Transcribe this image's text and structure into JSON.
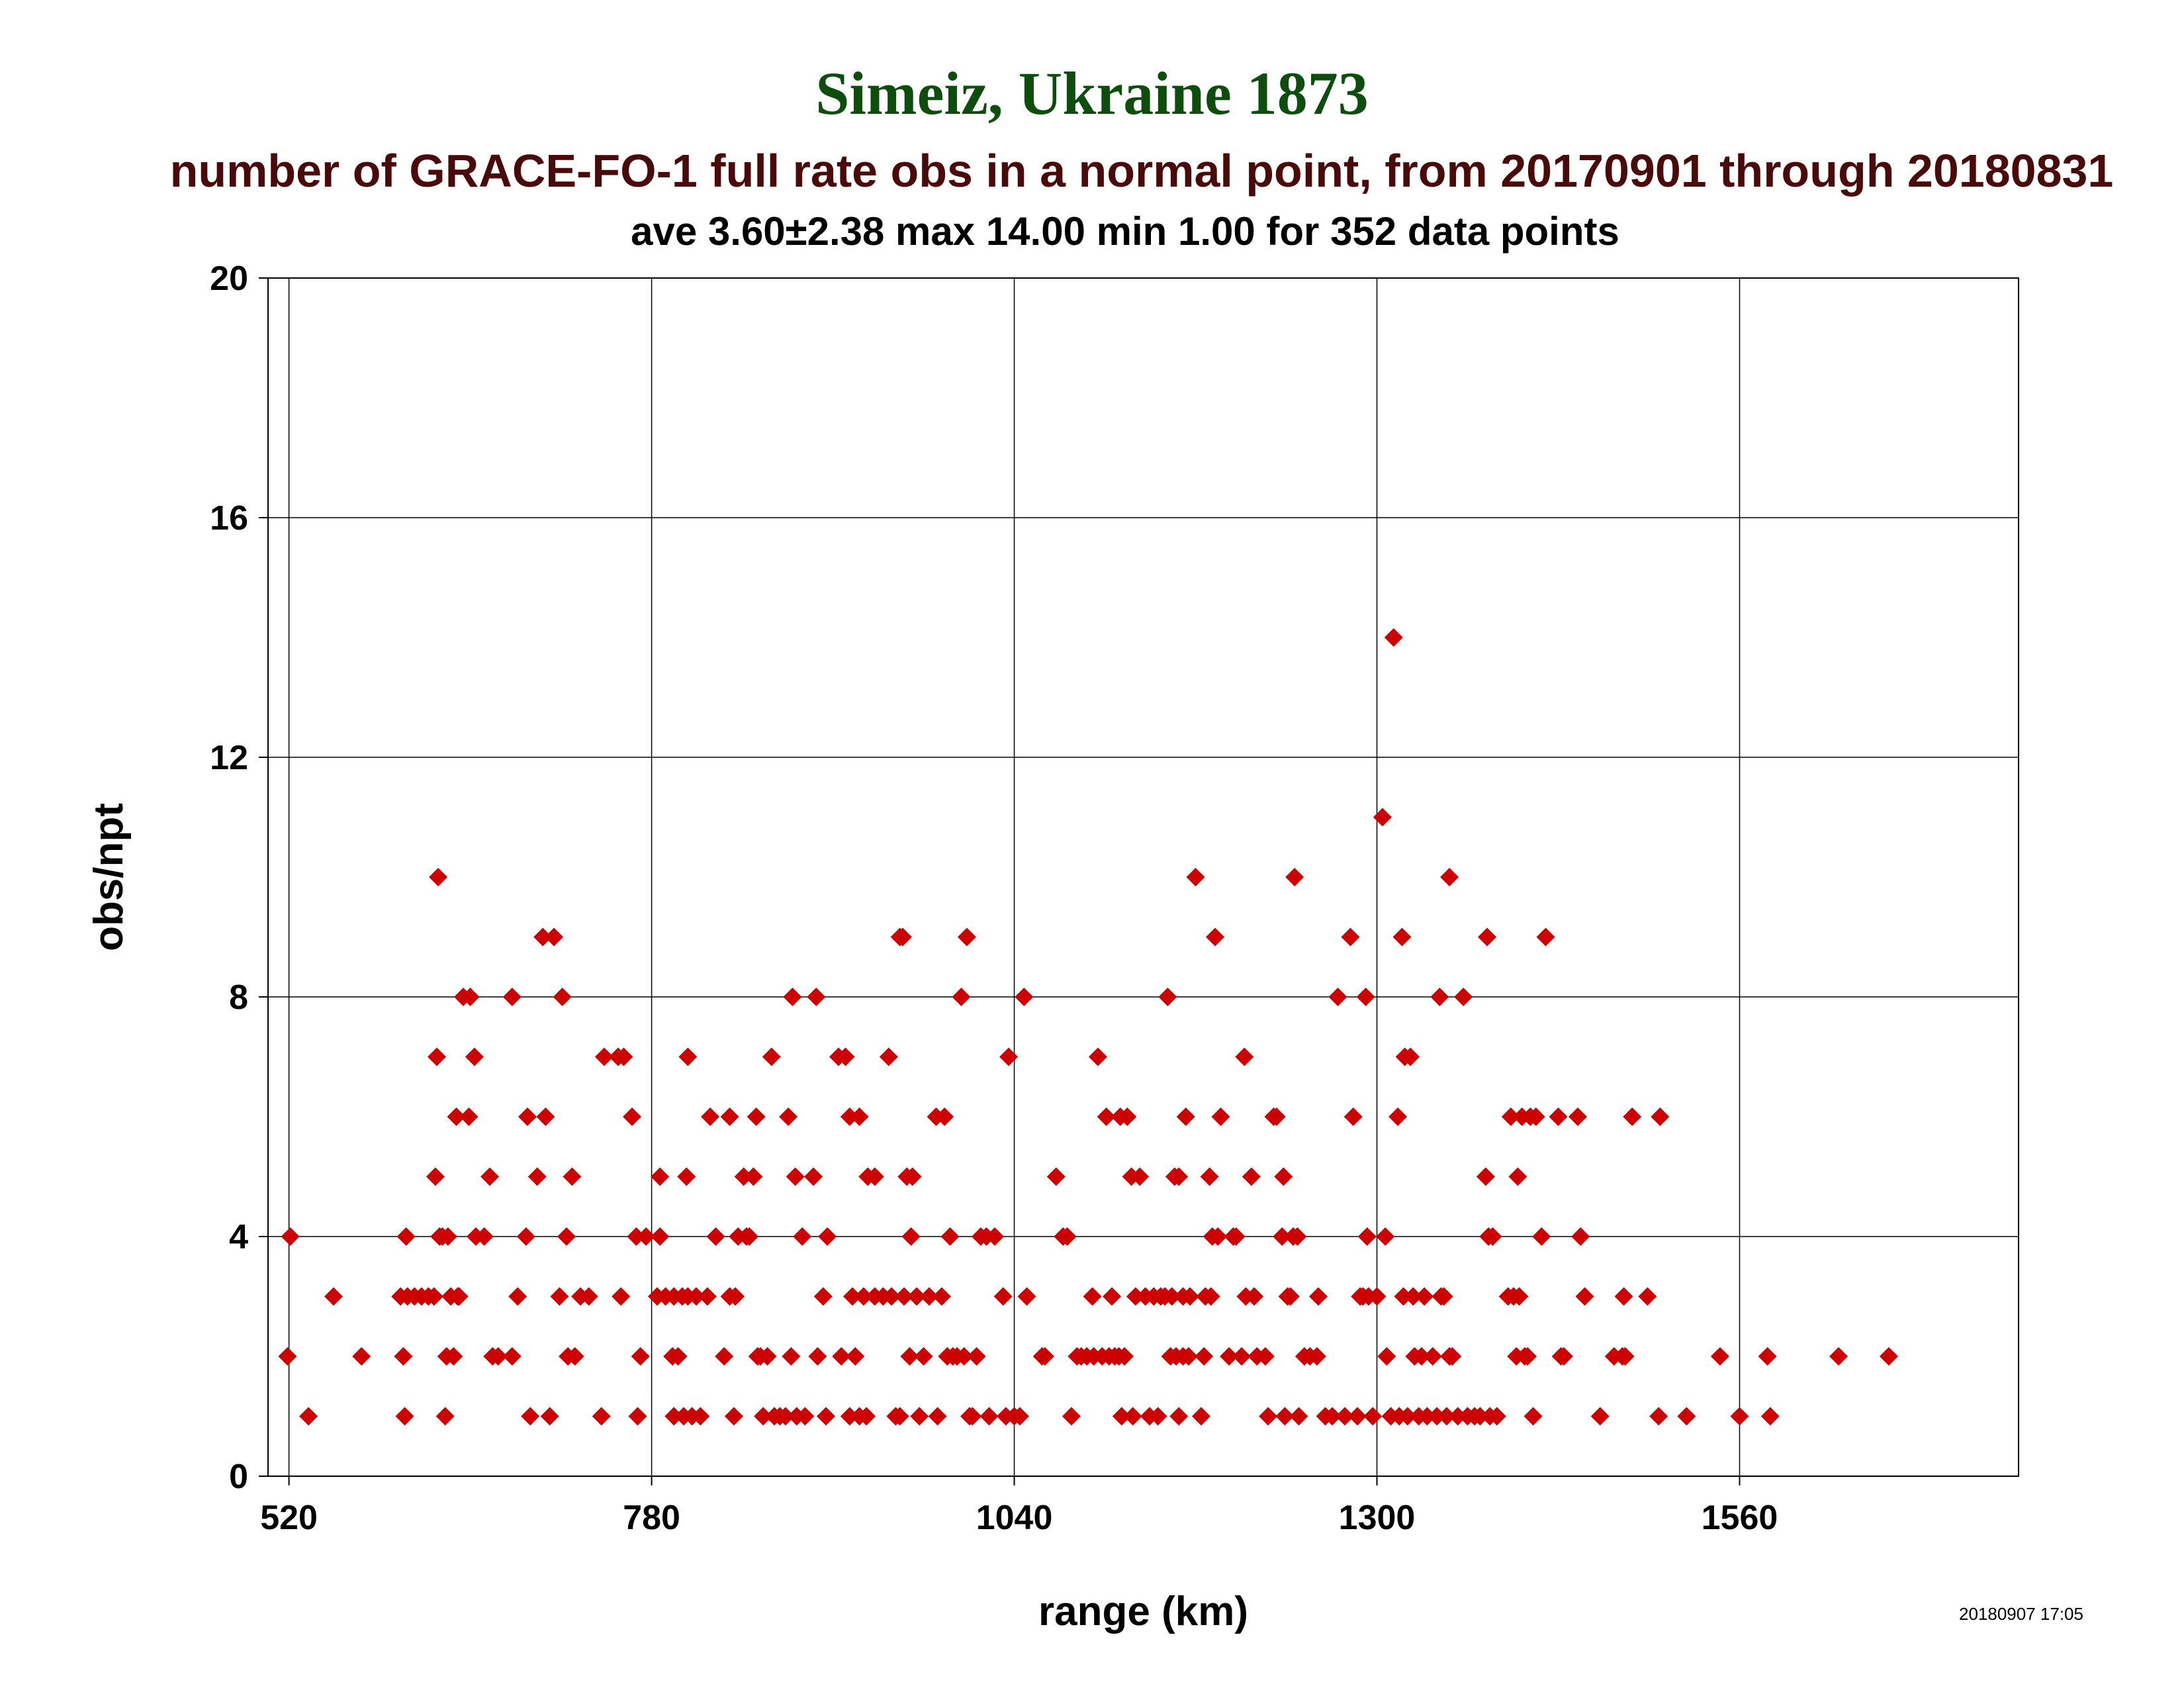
{
  "title": "Simeiz, Ukraine 1873",
  "subtitle": "number of GRACE-FO-1 full rate obs in a normal point, from 20170901 through 20180831",
  "stats": "ave 3.60±2.38 max 14.00 min 1.00 for 352 data points",
  "timestamp": "20180907 17:05",
  "colors": {
    "marker": "#cc0000",
    "title": "#0f4d0f",
    "subtitle": "#4a0a0a",
    "grid": "#000000"
  },
  "chart_data": {
    "type": "scatter",
    "xlabel": "range (km)",
    "ylabel": "obs/npt",
    "xlim": [
      505,
      1760
    ],
    "ylim": [
      0,
      20
    ],
    "xticks": [
      520,
      780,
      1040,
      1300,
      1560
    ],
    "yticks": [
      0,
      4,
      8,
      12,
      16,
      20
    ],
    "grid": true,
    "marker": "diamond",
    "points": [
      [
        521,
        4
      ],
      [
        519,
        2
      ],
      [
        534,
        1
      ],
      [
        552,
        3
      ],
      [
        572,
        2
      ],
      [
        600,
        3
      ],
      [
        605,
        3
      ],
      [
        610,
        3
      ],
      [
        615,
        3
      ],
      [
        620,
        3
      ],
      [
        602,
        2
      ],
      [
        603,
        1
      ],
      [
        604,
        4
      ],
      [
        624,
        3
      ],
      [
        625,
        5
      ],
      [
        626,
        7
      ],
      [
        627,
        10
      ],
      [
        628,
        4
      ],
      [
        630,
        4
      ],
      [
        634,
        4
      ],
      [
        632,
        1
      ],
      [
        633,
        2
      ],
      [
        636,
        3
      ],
      [
        638,
        2
      ],
      [
        640,
        6
      ],
      [
        641,
        3
      ],
      [
        642,
        3
      ],
      [
        645,
        8
      ],
      [
        649,
        6
      ],
      [
        650,
        8
      ],
      [
        653,
        7
      ],
      [
        654,
        4
      ],
      [
        660,
        4
      ],
      [
        664,
        5
      ],
      [
        666,
        2
      ],
      [
        670,
        2
      ],
      [
        680,
        8
      ],
      [
        684,
        3
      ],
      [
        680,
        2
      ],
      [
        691,
        6
      ],
      [
        690,
        4
      ],
      [
        693,
        1
      ],
      [
        698,
        5
      ],
      [
        702,
        9
      ],
      [
        704,
        6
      ],
      [
        707,
        1
      ],
      [
        710,
        9
      ],
      [
        714,
        3
      ],
      [
        716,
        8
      ],
      [
        719,
        4
      ],
      [
        720,
        2
      ],
      [
        723,
        5
      ],
      [
        725,
        2
      ],
      [
        729,
        3
      ],
      [
        735,
        3
      ],
      [
        744,
        1
      ],
      [
        746,
        7
      ],
      [
        756,
        7
      ],
      [
        760,
        7
      ],
      [
        758,
        3
      ],
      [
        766,
        6
      ],
      [
        769,
        4
      ],
      [
        770,
        1
      ],
      [
        772,
        2
      ],
      [
        776,
        4
      ],
      [
        784,
        3
      ],
      [
        786,
        5
      ],
      [
        786,
        4
      ],
      [
        790,
        3
      ],
      [
        795,
        2
      ],
      [
        796,
        3
      ],
      [
        796,
        1
      ],
      [
        799,
        2
      ],
      [
        802,
        3
      ],
      [
        803,
        1
      ],
      [
        805,
        5
      ],
      [
        806,
        7
      ],
      [
        806,
        3
      ],
      [
        809,
        1
      ],
      [
        812,
        3
      ],
      [
        815,
        1
      ],
      [
        820,
        3
      ],
      [
        822,
        6
      ],
      [
        826,
        4
      ],
      [
        832,
        2
      ],
      [
        836,
        3
      ],
      [
        836,
        6
      ],
      [
        839,
        1
      ],
      [
        840,
        3
      ],
      [
        842,
        4
      ],
      [
        846,
        5
      ],
      [
        848,
        4
      ],
      [
        850,
        4
      ],
      [
        853,
        5
      ],
      [
        855,
        6
      ],
      [
        856,
        2
      ],
      [
        858,
        2
      ],
      [
        860,
        1
      ],
      [
        863,
        2
      ],
      [
        866,
        7
      ],
      [
        868,
        1
      ],
      [
        872,
        1
      ],
      [
        876,
        1
      ],
      [
        878,
        6
      ],
      [
        880,
        2
      ],
      [
        881,
        8
      ],
      [
        883,
        5
      ],
      [
        884,
        1
      ],
      [
        888,
        4
      ],
      [
        890,
        1
      ],
      [
        896,
        5
      ],
      [
        898,
        8
      ],
      [
        899,
        2
      ],
      [
        903,
        3
      ],
      [
        906,
        4
      ],
      [
        905,
        1
      ],
      [
        914,
        7
      ],
      [
        916,
        2
      ],
      [
        919,
        7
      ],
      [
        922,
        6
      ],
      [
        922,
        1
      ],
      [
        924,
        3
      ],
      [
        926,
        2
      ],
      [
        929,
        1
      ],
      [
        929,
        6
      ],
      [
        932,
        3
      ],
      [
        934,
        1
      ],
      [
        935,
        5
      ],
      [
        940,
        5
      ],
      [
        940,
        3
      ],
      [
        946,
        3
      ],
      [
        950,
        7
      ],
      [
        952,
        3
      ],
      [
        955,
        1
      ],
      [
        958,
        1
      ],
      [
        958,
        9
      ],
      [
        960,
        9
      ],
      [
        961,
        3
      ],
      [
        963,
        5
      ],
      [
        965,
        2
      ],
      [
        966,
        4
      ],
      [
        967,
        5
      ],
      [
        970,
        3
      ],
      [
        972,
        1
      ],
      [
        975,
        2
      ],
      [
        979,
        3
      ],
      [
        984,
        6
      ],
      [
        985,
        1
      ],
      [
        988,
        3
      ],
      [
        990,
        6
      ],
      [
        992,
        2
      ],
      [
        994,
        4
      ],
      [
        996,
        2
      ],
      [
        999,
        2
      ],
      [
        1002,
        8
      ],
      [
        1004,
        2
      ],
      [
        1006,
        9
      ],
      [
        1008,
        1
      ],
      [
        1010,
        1
      ],
      [
        1013,
        2
      ],
      [
        1016,
        4
      ],
      [
        1020,
        4
      ],
      [
        1022,
        1
      ],
      [
        1026,
        4
      ],
      [
        1032,
        3
      ],
      [
        1034,
        1
      ],
      [
        1036,
        7
      ],
      [
        1040,
        1
      ],
      [
        1044,
        1
      ],
      [
        1047,
        8
      ],
      [
        1049,
        3
      ],
      [
        1060,
        2
      ],
      [
        1062,
        2
      ],
      [
        1070,
        5
      ],
      [
        1075,
        4
      ],
      [
        1078,
        4
      ],
      [
        1081,
        1
      ],
      [
        1085,
        2
      ],
      [
        1088,
        2
      ],
      [
        1092,
        2
      ],
      [
        1096,
        3
      ],
      [
        1097,
        2
      ],
      [
        1100,
        7
      ],
      [
        1103,
        2
      ],
      [
        1106,
        6
      ],
      [
        1108,
        2
      ],
      [
        1110,
        3
      ],
      [
        1112,
        2
      ],
      [
        1115,
        2
      ],
      [
        1116,
        6
      ],
      [
        1117,
        1
      ],
      [
        1119,
        2
      ],
      [
        1121,
        6
      ],
      [
        1124,
        5
      ],
      [
        1125,
        1
      ],
      [
        1127,
        3
      ],
      [
        1130,
        5
      ],
      [
        1134,
        3
      ],
      [
        1137,
        1
      ],
      [
        1140,
        3
      ],
      [
        1143,
        1
      ],
      [
        1145,
        3
      ],
      [
        1148,
        3
      ],
      [
        1150,
        8
      ],
      [
        1152,
        2
      ],
      [
        1153,
        3
      ],
      [
        1155,
        5
      ],
      [
        1156,
        2
      ],
      [
        1158,
        5
      ],
      [
        1158,
        1
      ],
      [
        1161,
        3
      ],
      [
        1161,
        2
      ],
      [
        1163,
        6
      ],
      [
        1165,
        2
      ],
      [
        1166,
        3
      ],
      [
        1170,
        10
      ],
      [
        1174,
        1
      ],
      [
        1176,
        2
      ],
      [
        1177,
        3
      ],
      [
        1180,
        5
      ],
      [
        1181,
        3
      ],
      [
        1182,
        4
      ],
      [
        1184,
        9
      ],
      [
        1186,
        4
      ],
      [
        1188,
        6
      ],
      [
        1194,
        2
      ],
      [
        1197,
        4
      ],
      [
        1199,
        4
      ],
      [
        1203,
        2
      ],
      [
        1205,
        7
      ],
      [
        1206,
        3
      ],
      [
        1210,
        5
      ],
      [
        1212,
        3
      ],
      [
        1214,
        2
      ],
      [
        1220,
        2
      ],
      [
        1222,
        1
      ],
      [
        1226,
        6
      ],
      [
        1228,
        6
      ],
      [
        1232,
        4
      ],
      [
        1233,
        5
      ],
      [
        1234,
        1
      ],
      [
        1236,
        3
      ],
      [
        1238,
        3
      ],
      [
        1240,
        4
      ],
      [
        1241,
        10
      ],
      [
        1243,
        4
      ],
      [
        1244,
        1
      ],
      [
        1248,
        2
      ],
      [
        1252,
        2
      ],
      [
        1257,
        2
      ],
      [
        1258,
        3
      ],
      [
        1263,
        1
      ],
      [
        1268,
        1
      ],
      [
        1272,
        8
      ],
      [
        1277,
        1
      ],
      [
        1281,
        9
      ],
      [
        1283,
        6
      ],
      [
        1286,
        1
      ],
      [
        1288,
        3
      ],
      [
        1290,
        3
      ],
      [
        1292,
        8
      ],
      [
        1293,
        4
      ],
      [
        1294,
        3
      ],
      [
        1297,
        1
      ],
      [
        1300,
        3
      ],
      [
        1304,
        11
      ],
      [
        1306,
        4
      ],
      [
        1307,
        2
      ],
      [
        1310,
        1
      ],
      [
        1312,
        14
      ],
      [
        1315,
        6
      ],
      [
        1316,
        1
      ],
      [
        1318,
        9
      ],
      [
        1319,
        3
      ],
      [
        1320,
        7
      ],
      [
        1322,
        1
      ],
      [
        1324,
        7
      ],
      [
        1326,
        3
      ],
      [
        1327,
        2
      ],
      [
        1330,
        1
      ],
      [
        1332,
        2
      ],
      [
        1334,
        3
      ],
      [
        1336,
        1
      ],
      [
        1340,
        2
      ],
      [
        1343,
        1
      ],
      [
        1345,
        8
      ],
      [
        1346,
        3
      ],
      [
        1348,
        3
      ],
      [
        1350,
        1
      ],
      [
        1352,
        2
      ],
      [
        1352,
        10
      ],
      [
        1354,
        2
      ],
      [
        1358,
        1
      ],
      [
        1362,
        8
      ],
      [
        1365,
        1
      ],
      [
        1370,
        1
      ],
      [
        1374,
        1
      ],
      [
        1378,
        5
      ],
      [
        1379,
        9
      ],
      [
        1380,
        4
      ],
      [
        1381,
        1
      ],
      [
        1383,
        4
      ],
      [
        1386,
        1
      ],
      [
        1394,
        3
      ],
      [
        1396,
        6
      ],
      [
        1398,
        3
      ],
      [
        1400,
        2
      ],
      [
        1401,
        5
      ],
      [
        1402,
        3
      ],
      [
        1404,
        6
      ],
      [
        1406,
        2
      ],
      [
        1408,
        2
      ],
      [
        1410,
        6
      ],
      [
        1412,
        1
      ],
      [
        1414,
        6
      ],
      [
        1418,
        4
      ],
      [
        1421,
        9
      ],
      [
        1430,
        6
      ],
      [
        1432,
        2
      ],
      [
        1434,
        2
      ],
      [
        1444,
        6
      ],
      [
        1446,
        4
      ],
      [
        1449,
        3
      ],
      [
        1460,
        1
      ],
      [
        1470,
        2
      ],
      [
        1476,
        2
      ],
      [
        1477,
        3
      ],
      [
        1478,
        2
      ],
      [
        1483,
        6
      ],
      [
        1494,
        3
      ],
      [
        1502,
        1
      ],
      [
        1503,
        6
      ],
      [
        1522,
        1
      ],
      [
        1546,
        2
      ],
      [
        1560,
        1
      ],
      [
        1580,
        2
      ],
      [
        1582,
        1
      ],
      [
        1631,
        2
      ],
      [
        1667,
        2
      ]
    ]
  }
}
